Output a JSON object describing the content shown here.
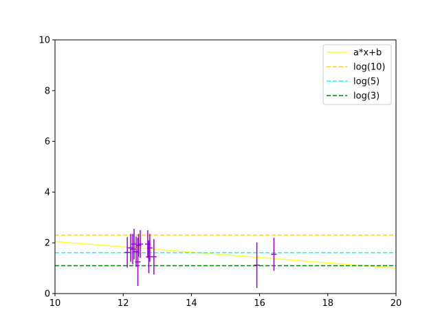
{
  "chart_data": {
    "type": "scatter",
    "title": "",
    "xlabel": "",
    "ylabel": "",
    "xlim": [
      10,
      20
    ],
    "ylim": [
      0,
      10
    ],
    "xticks": [
      "10",
      "12",
      "14",
      "16",
      "18",
      "20"
    ],
    "yticks": [
      "0",
      "2",
      "4",
      "6",
      "8",
      "10"
    ],
    "grid": false,
    "legend_position": "top-right",
    "lines": [
      {
        "name": "a*x+b",
        "color": "#ffff33",
        "style": "solid",
        "x": [
          10,
          20
        ],
        "y": [
          2.05,
          1.0
        ]
      },
      {
        "name": "log(10)",
        "color": "#ffd700",
        "style": "dashed",
        "x": [
          10,
          20
        ],
        "y": [
          2.303,
          2.303
        ]
      },
      {
        "name": "log(5)",
        "color": "#00ffff",
        "style": "dashed",
        "x": [
          10,
          20
        ],
        "y": [
          1.609,
          1.609
        ]
      },
      {
        "name": "log(3)",
        "color": "#008000",
        "style": "dashed",
        "x": [
          10,
          20
        ],
        "y": [
          1.099,
          1.099
        ]
      }
    ],
    "errorbar_series": {
      "color": "#9400d3",
      "points": [
        {
          "x": 12.12,
          "y": 1.62,
          "yerr": 0.6
        },
        {
          "x": 12.22,
          "y": 1.8,
          "yerr": 0.55
        },
        {
          "x": 12.28,
          "y": 1.75,
          "yerr": 0.6
        },
        {
          "x": 12.32,
          "y": 1.95,
          "yerr": 0.6
        },
        {
          "x": 12.38,
          "y": 1.65,
          "yerr": 0.6
        },
        {
          "x": 12.43,
          "y": 1.25,
          "yerr": 0.95
        },
        {
          "x": 12.45,
          "y": 1.9,
          "yerr": 0.45
        },
        {
          "x": 12.5,
          "y": 1.95,
          "yerr": 0.55
        },
        {
          "x": 12.72,
          "y": 1.95,
          "yerr": 0.55
        },
        {
          "x": 12.75,
          "y": 1.45,
          "yerr": 0.65
        },
        {
          "x": 12.78,
          "y": 1.8,
          "yerr": 0.55
        },
        {
          "x": 12.9,
          "y": 1.45,
          "yerr": 0.7
        },
        {
          "x": 15.92,
          "y": 1.12,
          "yerr": 0.9
        },
        {
          "x": 16.42,
          "y": 1.55,
          "yerr": 0.65
        }
      ]
    }
  }
}
